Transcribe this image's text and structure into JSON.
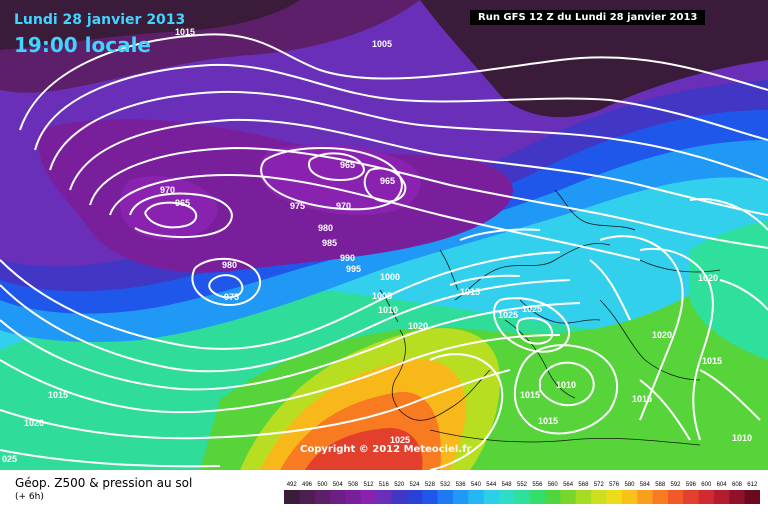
{
  "header": {
    "date": "Lundi 28 janvier 2013",
    "time": "19:00 locale",
    "run": "Run GFS 12 Z du Lundi 28 janvier 2013"
  },
  "map": {
    "copyright": "Copyright © 2012 Meteociel.fr",
    "isobar_labels": [
      "1015",
      "1005",
      "965",
      "965",
      "970",
      "965",
      "975",
      "970",
      "980",
      "985",
      "990",
      "995",
      "1000",
      "1005",
      "1010",
      "980",
      "975",
      "1015",
      "1025",
      "1025",
      "1020",
      "1020",
      "1020",
      "1015",
      "1010",
      "1015",
      "1015",
      "1015",
      "1020",
      "1025",
      "1015",
      "1010",
      "025"
    ]
  },
  "footer": {
    "title": "Géop. Z500 & pression au sol",
    "subtitle": "(+ 6h)"
  },
  "legend": {
    "labels": [
      "492",
      "496",
      "500",
      "504",
      "508",
      "512",
      "516",
      "520",
      "524",
      "528",
      "532",
      "536",
      "540",
      "544",
      "548",
      "552",
      "556",
      "560",
      "564",
      "568",
      "572",
      "576",
      "580",
      "584",
      "588",
      "592",
      "596",
      "600",
      "604",
      "608",
      "612"
    ],
    "colors": [
      "#3a1c3a",
      "#4d1f50",
      "#5d1f6a",
      "#6b1f84",
      "#7a1f9c",
      "#8a22b0",
      "#6a2fb8",
      "#4236c4",
      "#2a41d8",
      "#1e57ea",
      "#1e79f2",
      "#1f98f6",
      "#24b6f2",
      "#2ccfe6",
      "#2fdcc8",
      "#2fe09c",
      "#34de6c",
      "#4ed63e",
      "#78d62a",
      "#a6dc24",
      "#ccdf1f",
      "#eedc1a",
      "#f8c21a",
      "#fa9f1d",
      "#f87b22",
      "#f05a26",
      "#e2402c",
      "#d02b30",
      "#b31c30",
      "#8f1228",
      "#6b0a1e"
    ]
  }
}
